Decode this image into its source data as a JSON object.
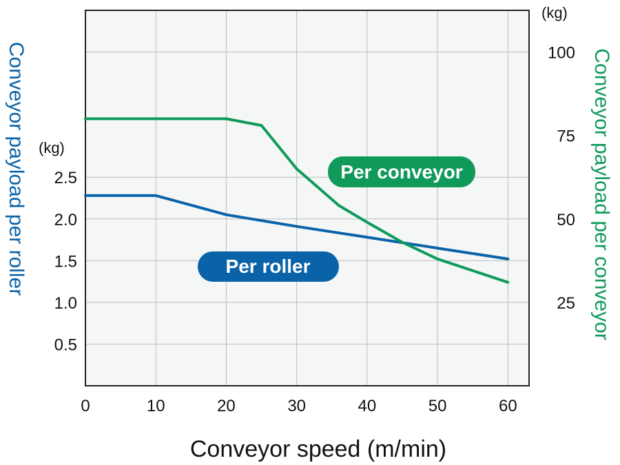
{
  "chart_data": {
    "type": "line",
    "xlabel": "Conveyor speed (m/min)",
    "x_ticks": [
      "0",
      "10",
      "20",
      "30",
      "40",
      "50",
      "60"
    ],
    "xlim": [
      0,
      63
    ],
    "left_axis": {
      "label": "Conveyor payload per roller",
      "unit": "(kg)",
      "ticks": [
        "0.5",
        "1.0",
        "1.5",
        "2.0",
        "2.5"
      ],
      "ylim": [
        0,
        4.5
      ],
      "color": "#0a63a8"
    },
    "right_axis": {
      "label": "Conveyor payload per conveyor",
      "unit": "(kg)",
      "ticks": [
        "25",
        "50",
        "75",
        "100"
      ],
      "ylim": [
        0,
        112.5
      ],
      "color": "#0f9a5a"
    },
    "grid": true,
    "series": [
      {
        "name": "Per roller",
        "axis": "left",
        "color": "#0a63a8",
        "x": [
          0,
          10,
          20,
          30,
          40,
          50,
          60
        ],
        "y": [
          2.28,
          2.28,
          2.05,
          1.91,
          1.78,
          1.65,
          1.52
        ]
      },
      {
        "name": "Per conveyor",
        "axis": "right",
        "color": "#0f9a5a",
        "x": [
          0,
          20,
          25,
          30,
          36,
          40,
          45,
          50,
          55,
          60
        ],
        "y": [
          80,
          80,
          78,
          65,
          54,
          49,
          43,
          38,
          34.5,
          31
        ]
      }
    ]
  }
}
